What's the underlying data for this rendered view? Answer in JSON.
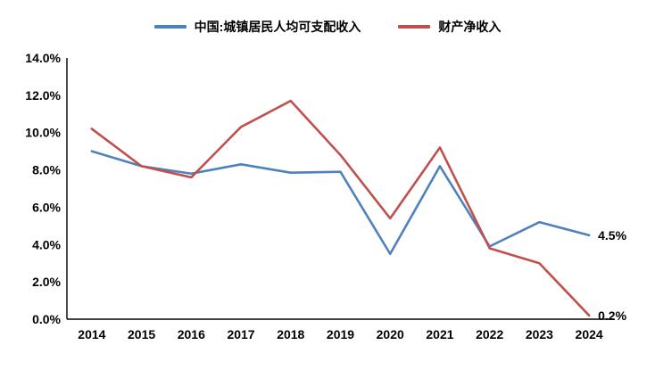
{
  "chart_data": {
    "type": "line",
    "title": "",
    "xlabel": "",
    "ylabel": "",
    "categories": [
      "2014",
      "2015",
      "2016",
      "2017",
      "2018",
      "2019",
      "2020",
      "2021",
      "2022",
      "2023",
      "2024"
    ],
    "series": [
      {
        "name": "中国:城镇居民人均可支配收入",
        "color": "#4F81BD",
        "values": [
          9.0,
          8.2,
          7.8,
          8.3,
          7.85,
          7.9,
          3.5,
          8.2,
          3.9,
          5.2,
          4.5
        ],
        "end_label": "4.5%"
      },
      {
        "name": "财产净收入",
        "color": "#C0504D",
        "values": [
          10.2,
          8.2,
          7.6,
          10.3,
          11.7,
          8.8,
          5.4,
          9.2,
          3.8,
          3.0,
          0.2
        ],
        "end_label": "0.2%"
      }
    ],
    "ylim": [
      0,
      14
    ],
    "ytick_labels": [
      "0.0%",
      "2.0%",
      "4.0%",
      "6.0%",
      "8.0%",
      "10.0%",
      "12.0%",
      "14.0%"
    ],
    "grid": false,
    "legend_position": "top",
    "axis_color": "#000000",
    "background": "#ffffff"
  }
}
